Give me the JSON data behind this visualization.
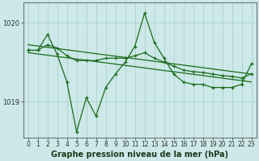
{
  "xlabel": "Graphe pression niveau de la mer (hPa)",
  "hours": [
    0,
    1,
    2,
    3,
    4,
    5,
    6,
    7,
    8,
    9,
    10,
    11,
    12,
    13,
    14,
    15,
    16,
    17,
    18,
    19,
    20,
    21,
    22,
    23
  ],
  "volatile_pressure": [
    1019.65,
    1019.65,
    1019.85,
    1019.6,
    1019.25,
    1018.62,
    1019.05,
    1018.82,
    1019.18,
    1019.35,
    1019.5,
    1019.7,
    1020.12,
    1019.75,
    1019.55,
    1019.35,
    1019.25,
    1019.22,
    1019.22,
    1019.18,
    1019.18,
    1019.18,
    1019.22,
    1019.48
  ],
  "smooth_pressure": [
    1019.65,
    1019.65,
    1019.72,
    1019.68,
    1019.58,
    1019.52,
    1019.52,
    1019.52,
    1019.55,
    1019.55,
    1019.55,
    1019.58,
    1019.62,
    1019.55,
    1019.5,
    1019.45,
    1019.4,
    1019.38,
    1019.37,
    1019.35,
    1019.33,
    1019.32,
    1019.3,
    1019.35
  ],
  "trend1_y": [
    1019.72,
    1019.35
  ],
  "trend2_y": [
    1019.62,
    1019.25
  ],
  "ylim": [
    1018.55,
    1020.25
  ],
  "yticks": [
    1019.0,
    1020.0
  ],
  "ytick_labels": [
    "1019",
    "1020"
  ],
  "bg_color": "#cce8e8",
  "grid_color": "#aacccc",
  "line_color": "#1a6b1a",
  "xlabel_fontsize": 7,
  "tick_fontsize": 5.5
}
